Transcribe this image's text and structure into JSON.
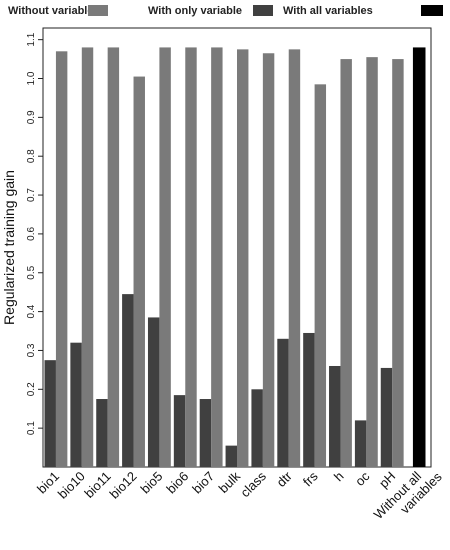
{
  "chart_data": {
    "type": "bar",
    "title": "",
    "xlabel": "",
    "ylabel": "Regularized training gain",
    "ylim": [
      0,
      1.13
    ],
    "yticks": [
      "0.1",
      "0.2",
      "0.3",
      "0.4",
      "0.5",
      "0.6",
      "0.7",
      "0.8",
      "0.9",
      "1.0",
      "1.1"
    ],
    "legend_placement": "top",
    "grid": false,
    "categories": [
      "bio1",
      "bio10",
      "bio11",
      "bio12",
      "bio5",
      "bio6",
      "bio7",
      "bulk",
      "class",
      "dtr",
      "frs",
      "h",
      "oc",
      "pH",
      "Without all variables"
    ],
    "series": [
      {
        "name": "Without variable",
        "color": "#7a7a7a",
        "values": [
          1.07,
          1.08,
          1.08,
          1.005,
          1.08,
          1.08,
          1.08,
          1.075,
          1.065,
          1.075,
          0.985,
          1.05,
          1.055,
          1.05,
          null
        ]
      },
      {
        "name": "With only variable",
        "color": "#404040",
        "values": [
          0.275,
          0.32,
          0.175,
          0.445,
          0.385,
          0.185,
          0.175,
          0.055,
          0.2,
          0.33,
          0.345,
          0.26,
          0.12,
          0.255,
          null
        ]
      },
      {
        "name": "With all variables",
        "color": "#000000",
        "values": [
          null,
          null,
          null,
          null,
          null,
          null,
          null,
          null,
          null,
          null,
          null,
          null,
          null,
          null,
          1.08
        ]
      }
    ]
  }
}
